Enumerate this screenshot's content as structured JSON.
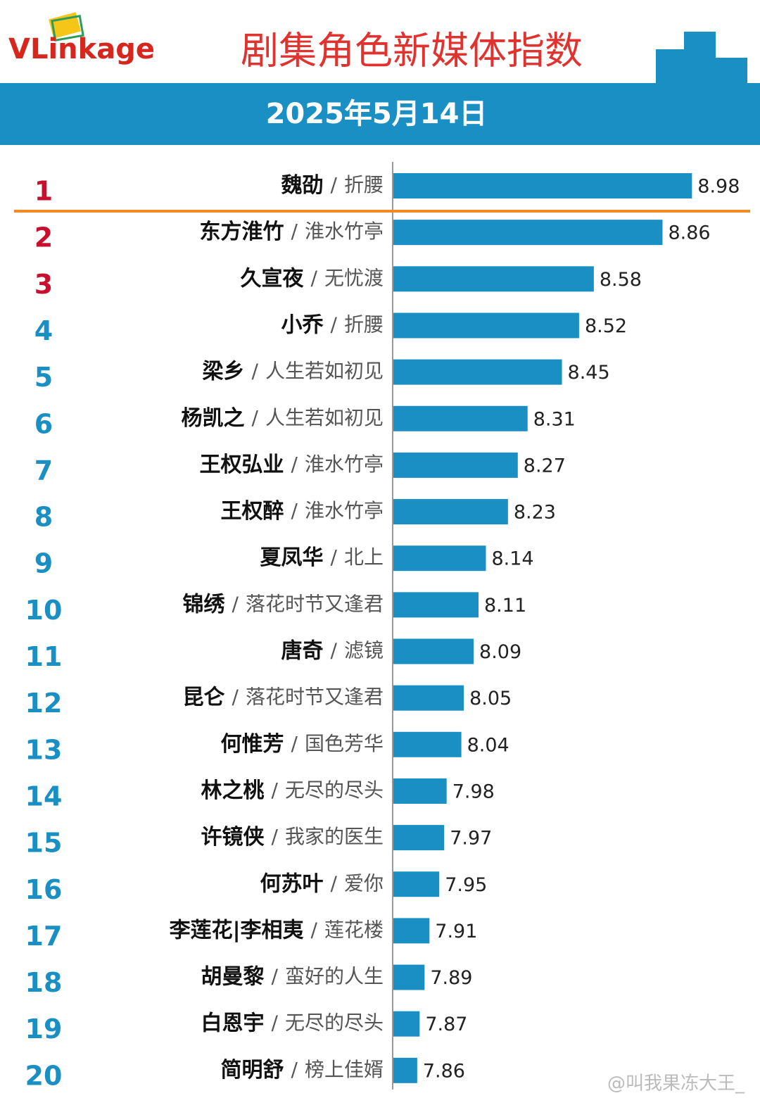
{
  "chart_data": {
    "type": "bar",
    "orientation": "horizontal",
    "logo": "VLinkage",
    "title": "剧集角色新媒体指数",
    "subtitle": "2025年5月14日",
    "separator": "/",
    "ranks": [
      1,
      2,
      3,
      4,
      5,
      6,
      7,
      8,
      9,
      10,
      11,
      12,
      13,
      14,
      15,
      16,
      17,
      18,
      19,
      20
    ],
    "categories": [
      "魏劭",
      "东方淮竹",
      "久宣夜",
      "小乔",
      "梁乡",
      "杨凯之",
      "王权弘业",
      "王权醉",
      "夏凤华",
      "锦绣",
      "唐奇",
      "昆仑",
      "何惟芳",
      "林之桃",
      "许镜侠",
      "何苏叶",
      "李莲花|李相夷",
      "胡曼黎",
      "白恩宇",
      "简明舒"
    ],
    "dramas": [
      "折腰",
      "淮水竹亭",
      "无忧渡",
      "折腰",
      "人生若如初见",
      "人生若如初见",
      "淮水竹亭",
      "淮水竹亭",
      "北上",
      "落花时节又逢君",
      "滤镜",
      "落花时节又逢君",
      "国色芳华",
      "无尽的尽头",
      "我家的医生",
      "爱你",
      "莲花楼",
      "蛮好的人生",
      "无尽的尽头",
      "榜上佳婿"
    ],
    "values": [
      8.98,
      8.86,
      8.58,
      8.52,
      8.45,
      8.31,
      8.27,
      8.23,
      8.14,
      8.11,
      8.09,
      8.05,
      8.04,
      7.98,
      7.97,
      7.95,
      7.91,
      7.89,
      7.87,
      7.86
    ],
    "color": "#1a8fc4",
    "xlim": [
      7.76,
      9.2
    ],
    "watermark": "@叫我果冻大王_"
  }
}
